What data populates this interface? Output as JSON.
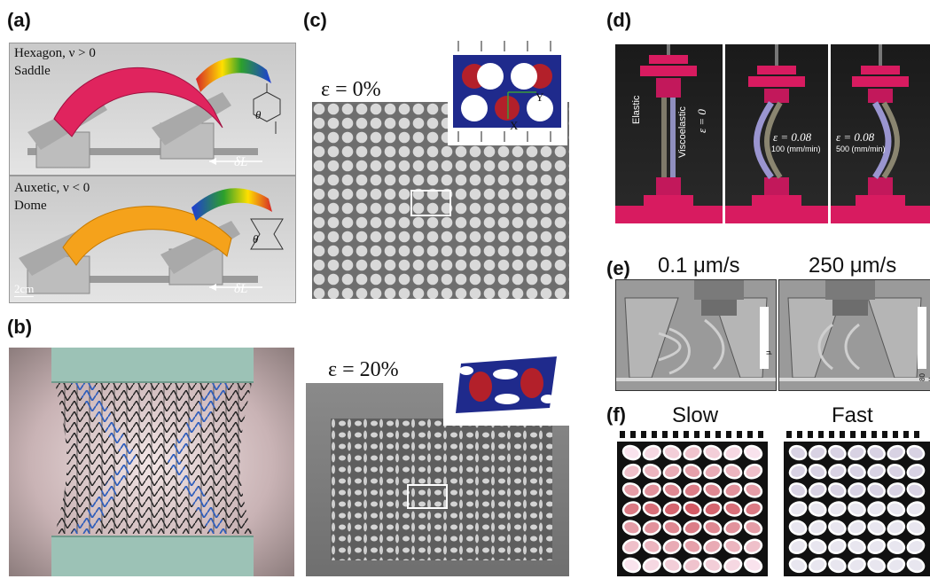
{
  "panels": {
    "a": {
      "label": "(a)",
      "top_text_1": "Hexagon, ν > 0",
      "top_text_2": "Saddle",
      "bottom_text_1": "Auxetic, ν < 0",
      "bottom_text_2": "Dome",
      "delta_l_top": "δL",
      "delta_l_bottom": "δL",
      "theta_top": "θ",
      "theta_bottom": "θ",
      "scale": "2cm"
    },
    "b": {
      "label": "(b)"
    },
    "c": {
      "label": "(c)",
      "strain_top": "ε = 0%",
      "strain_bottom": "ε = 20%",
      "axis_y": "Y",
      "axis_x": "X"
    },
    "d": {
      "label": "(d)",
      "elastic": "Elastic",
      "viscoelastic": "Viscoelastic",
      "eps0": "ε = 0",
      "eps_mid": "ε = 0.08",
      "rate_mid": "100 (mm/min)",
      "eps_right": "ε = 0.08",
      "rate_right": "500 (mm/min)"
    },
    "e": {
      "label": "(e)",
      "speed_left": "0.1 μm/s",
      "speed_right": "250 μm/s",
      "scale_left": "μ",
      "scale_right": "80 μ"
    },
    "f": {
      "label": "(f)",
      "slow": "Slow",
      "fast": "Fast"
    }
  },
  "colors": {
    "saddle": "#e0245e",
    "dome": "#f5a21b",
    "blue_cells": "#3a6fc2",
    "inset_navy": "#1f2a8c",
    "inset_red": "#b3202a",
    "magenta": "#d81b60"
  }
}
